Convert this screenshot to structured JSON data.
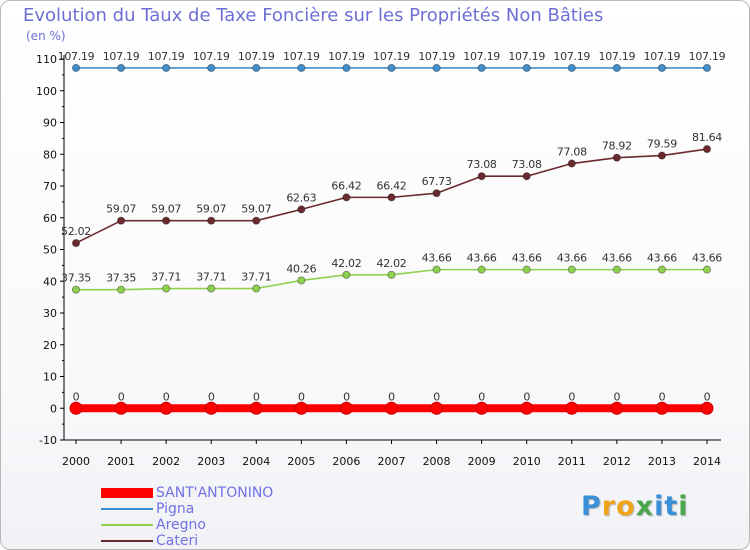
{
  "title": "Evolution du Taux de Taxe Foncière sur les Propriétés Non Bâties",
  "unit_label": "(en %)",
  "brand": {
    "letters": [
      {
        "ch": "P",
        "color": "#3a8fd6"
      },
      {
        "ch": "r",
        "color": "#f2a31c"
      },
      {
        "ch": "o",
        "color": "#f2a31c"
      },
      {
        "ch": "x",
        "color": "#4aa64a"
      },
      {
        "ch": "i",
        "color": "#3a8fd6"
      },
      {
        "ch": "t",
        "color": "#3a8fd6"
      },
      {
        "ch": "i",
        "color": "#4aa64a"
      }
    ]
  },
  "chart_data": {
    "type": "line",
    "title": "Evolution du Taux de Taxe Foncière sur les Propriétés Non Bâties",
    "ylabel": "(en %)",
    "xlabel": "",
    "x": [
      2000,
      2001,
      2002,
      2003,
      2004,
      2005,
      2006,
      2007,
      2008,
      2009,
      2010,
      2011,
      2012,
      2013,
      2014
    ],
    "ylim": [
      -10,
      110
    ],
    "yticks": [
      -10,
      0,
      10,
      20,
      30,
      40,
      50,
      60,
      70,
      80,
      90,
      100,
      110
    ],
    "grid": false,
    "legend_position": "bottom-left",
    "series": [
      {
        "name": "SANT'ANTONINO",
        "color": "#ff0000",
        "values": [
          0,
          0,
          0,
          0,
          0,
          0,
          0,
          0,
          0,
          0,
          0,
          0,
          0,
          0,
          0
        ],
        "labels": [
          "0",
          "0",
          "0",
          "0",
          "0",
          "0",
          "0",
          "0",
          "0",
          "0",
          "0",
          "0",
          "0",
          "0",
          "0"
        ]
      },
      {
        "name": "Pigna",
        "color": "#3f8fce",
        "values": [
          107.19,
          107.19,
          107.19,
          107.19,
          107.19,
          107.19,
          107.19,
          107.19,
          107.19,
          107.19,
          107.19,
          107.19,
          107.19,
          107.19,
          107.19
        ],
        "labels": [
          "107.19",
          "107.19",
          "107.19",
          "107.19",
          "107.19",
          "107.19",
          "107.19",
          "107.19",
          "107.19",
          "107.19",
          "107.19",
          "107.19",
          "107.19",
          "107.19",
          "107.19"
        ]
      },
      {
        "name": "Aregno",
        "color": "#8fd14f",
        "values": [
          37.35,
          37.35,
          37.71,
          37.71,
          37.71,
          40.26,
          42.02,
          42.02,
          43.66,
          43.66,
          43.66,
          43.66,
          43.66,
          43.66,
          43.66
        ],
        "labels": [
          "37.35",
          "37.35",
          "37.71",
          "37.71",
          "37.71",
          "40.26",
          "42.02",
          "42.02",
          "43.66",
          "43.66",
          "43.66",
          "43.66",
          "43.66",
          "43.66",
          "43.66"
        ]
      },
      {
        "name": "Cateri",
        "color": "#6b2a2f",
        "values": [
          52.02,
          59.07,
          59.07,
          59.07,
          59.07,
          62.63,
          66.42,
          66.42,
          67.73,
          73.08,
          73.08,
          77.08,
          78.92,
          79.59,
          81.64
        ],
        "labels": [
          "52.02",
          "59.07",
          "59.07",
          "59.07",
          "59.07",
          "62.63",
          "66.42",
          "66.42",
          "67.73",
          "73.08",
          "73.08",
          "77.08",
          "78.92",
          "79.59",
          "81.64"
        ]
      }
    ]
  }
}
